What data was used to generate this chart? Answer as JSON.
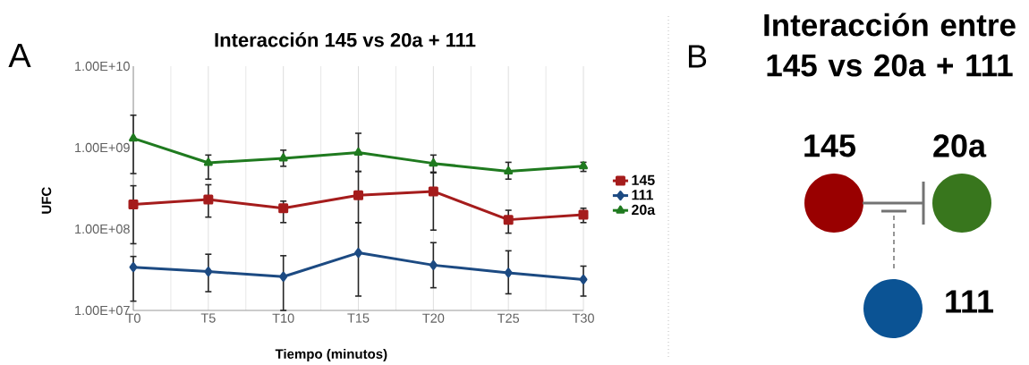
{
  "chart_data": [
    {
      "type": "line",
      "title": "Interacción 145 vs 20a + 111",
      "xlabel": "Tiempo (minutos)",
      "ylabel": "UFC",
      "annotations": [
        "A"
      ],
      "categories": [
        "T0",
        "T5",
        "T10",
        "T15",
        "T20",
        "T25",
        "T30"
      ],
      "log": true,
      "ylim": [
        10000000.0,
        10000000000.0
      ],
      "yticks": [
        {
          "value": 10000000.0,
          "label": "1.00E+07"
        },
        {
          "value": 100000000.0,
          "label": "1.00E+08"
        },
        {
          "value": 1000000000.0,
          "label": "1.00E+09"
        },
        {
          "value": 10000000000.0,
          "label": "1.00E+10"
        }
      ],
      "grid": "x",
      "legend": "right",
      "series": [
        {
          "name": "145",
          "color": "#a51c1c",
          "marker": "square",
          "values": [
            200000000.0,
            230000000.0,
            180000000.0,
            260000000.0,
            290000000.0,
            130000000.0,
            150000000.0
          ],
          "errors": [
            [
              66000000.0,
              340000000.0
            ],
            [
              140000000.0,
              350000000.0
            ],
            [
              120000000.0,
              220000000.0
            ],
            [
              120000000.0,
              510000000.0
            ],
            [
              97000000.0,
              490000000.0
            ],
            [
              89000000.0,
              170000000.0
            ],
            [
              120000000.0,
              180000000.0
            ]
          ]
        },
        {
          "name": "111",
          "color": "#1c4a82",
          "marker": "diamond",
          "values": [
            34000000.0,
            30000000.0,
            26000000.0,
            51000000.0,
            36000000.0,
            29000000.0,
            24000000.0
          ],
          "errors": [
            [
              13000000.0,
              46000000.0
            ],
            [
              17000000.0,
              49000000.0
            ],
            [
              10000000.0,
              47000000.0
            ],
            [
              15000000.0,
              120000000.0
            ],
            [
              19000000.0,
              68000000.0
            ],
            [
              16000000.0,
              54000000.0
            ],
            [
              15000000.0,
              35000000.0
            ]
          ]
        },
        {
          "name": "20a",
          "color": "#1f7a1f",
          "marker": "triangle",
          "values": [
            1300000000.0,
            650000000.0,
            740000000.0,
            870000000.0,
            640000000.0,
            510000000.0,
            590000000.0
          ],
          "errors": [
            [
              480000000.0,
              2500000000.0
            ],
            [
              410000000.0,
              810000000.0
            ],
            [
              590000000.0,
              930000000.0
            ],
            [
              510000000.0,
              1500000000.0
            ],
            [
              500000000.0,
              810000000.0
            ],
            [
              410000000.0,
              660000000.0
            ],
            [
              510000000.0,
              660000000.0
            ]
          ]
        }
      ]
    },
    {
      "type": "other",
      "title": "Interacción entre 145 vs 20a + 111",
      "annotations": [
        "B",
        "145",
        "20a",
        "111"
      ]
    }
  ]
}
